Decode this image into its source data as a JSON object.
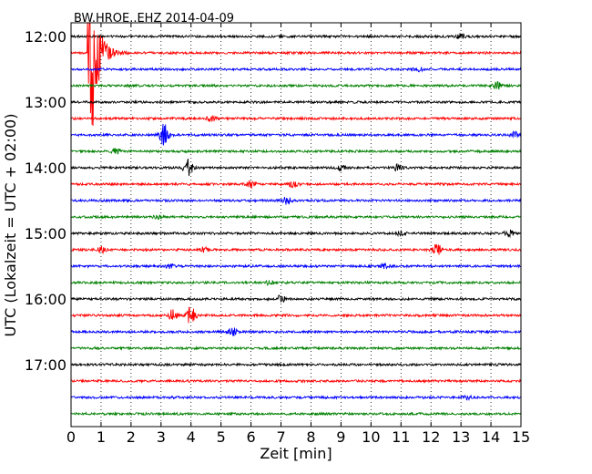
{
  "chart_data": {
    "type": "line",
    "title": "BW.HROE..EHZ 2014-04-09",
    "xlabel": "Zeit  [min]",
    "ylabel": "UTC (Lokalzeit = UTC + 02:00)",
    "xlim": [
      0,
      15
    ],
    "x_ticks": [
      "0",
      "1",
      "2",
      "3",
      "4",
      "5",
      "6",
      "7",
      "8",
      "9",
      "10",
      "11",
      "12",
      "13",
      "14",
      "15"
    ],
    "grid": "vertical-dotted",
    "trace_colors": [
      "#000000",
      "#ff0000",
      "#0000ff",
      "#008000"
    ],
    "traces": [
      {
        "start": "12:00",
        "color": "#000000",
        "events": [
          {
            "t": 13.0,
            "amp": 0.12
          }
        ]
      },
      {
        "start": "12:15",
        "color": "#ff0000",
        "events": [
          {
            "t": 0.6,
            "amp": 1.0,
            "note": "large local event, extends to ~13:20 row"
          }
        ]
      },
      {
        "start": "12:30",
        "color": "#0000ff",
        "events": [
          {
            "t": 11.6,
            "amp": 0.1
          }
        ]
      },
      {
        "start": "12:45",
        "color": "#008000",
        "events": [
          {
            "t": 14.2,
            "amp": 0.15
          }
        ]
      },
      {
        "start": "13:00",
        "color": "#000000",
        "events": []
      },
      {
        "start": "13:15",
        "color": "#ff0000",
        "events": [
          {
            "t": 4.7,
            "amp": 0.12
          }
        ]
      },
      {
        "start": "13:30",
        "color": "#0000ff",
        "events": [
          {
            "t": 3.1,
            "amp": 0.5
          },
          {
            "t": 14.8,
            "amp": 0.15
          }
        ]
      },
      {
        "start": "13:45",
        "color": "#008000",
        "events": [
          {
            "t": 1.5,
            "amp": 0.1
          }
        ]
      },
      {
        "start": "14:00",
        "color": "#000000",
        "events": [
          {
            "t": 3.9,
            "amp": 0.4
          },
          {
            "t": 9.0,
            "amp": 0.12
          },
          {
            "t": 10.9,
            "amp": 0.12
          }
        ]
      },
      {
        "start": "14:15",
        "color": "#ff0000",
        "events": [
          {
            "t": 6.0,
            "amp": 0.15
          },
          {
            "t": 7.4,
            "amp": 0.12
          }
        ]
      },
      {
        "start": "14:30",
        "color": "#0000ff",
        "events": [
          {
            "t": 7.2,
            "amp": 0.15
          }
        ]
      },
      {
        "start": "14:45",
        "color": "#008000",
        "events": [
          {
            "t": 2.9,
            "amp": 0.1
          }
        ]
      },
      {
        "start": "15:00",
        "color": "#000000",
        "events": [
          {
            "t": 11.0,
            "amp": 0.1
          },
          {
            "t": 14.6,
            "amp": 0.12
          }
        ]
      },
      {
        "start": "15:15",
        "color": "#ff0000",
        "events": [
          {
            "t": 1.0,
            "amp": 0.15
          },
          {
            "t": 4.4,
            "amp": 0.12
          },
          {
            "t": 12.2,
            "amp": 0.25
          }
        ]
      },
      {
        "start": "15:30",
        "color": "#0000ff",
        "events": [
          {
            "t": 3.3,
            "amp": 0.1
          },
          {
            "t": 10.5,
            "amp": 0.1
          }
        ]
      },
      {
        "start": "15:45",
        "color": "#008000",
        "events": [
          {
            "t": 6.6,
            "amp": 0.1
          }
        ]
      },
      {
        "start": "16:00",
        "color": "#000000",
        "events": [
          {
            "t": 7.0,
            "amp": 0.15
          }
        ]
      },
      {
        "start": "16:15",
        "color": "#ff0000",
        "events": [
          {
            "t": 3.4,
            "amp": 0.25
          },
          {
            "t": 4.0,
            "amp": 0.45
          }
        ]
      },
      {
        "start": "16:30",
        "color": "#0000ff",
        "events": [
          {
            "t": 5.4,
            "amp": 0.15
          }
        ]
      },
      {
        "start": "16:45",
        "color": "#008000",
        "events": []
      },
      {
        "start": "17:00",
        "color": "#000000",
        "events": []
      },
      {
        "start": "17:15",
        "color": "#ff0000",
        "events": []
      },
      {
        "start": "17:30",
        "color": "#0000ff",
        "events": [
          {
            "t": 13.2,
            "amp": 0.08
          }
        ]
      },
      {
        "start": "17:45",
        "color": "#008000",
        "events": []
      }
    ],
    "y_ticks": [
      "12:00",
      "13:00",
      "14:00",
      "15:00",
      "16:00",
      "17:00"
    ]
  }
}
